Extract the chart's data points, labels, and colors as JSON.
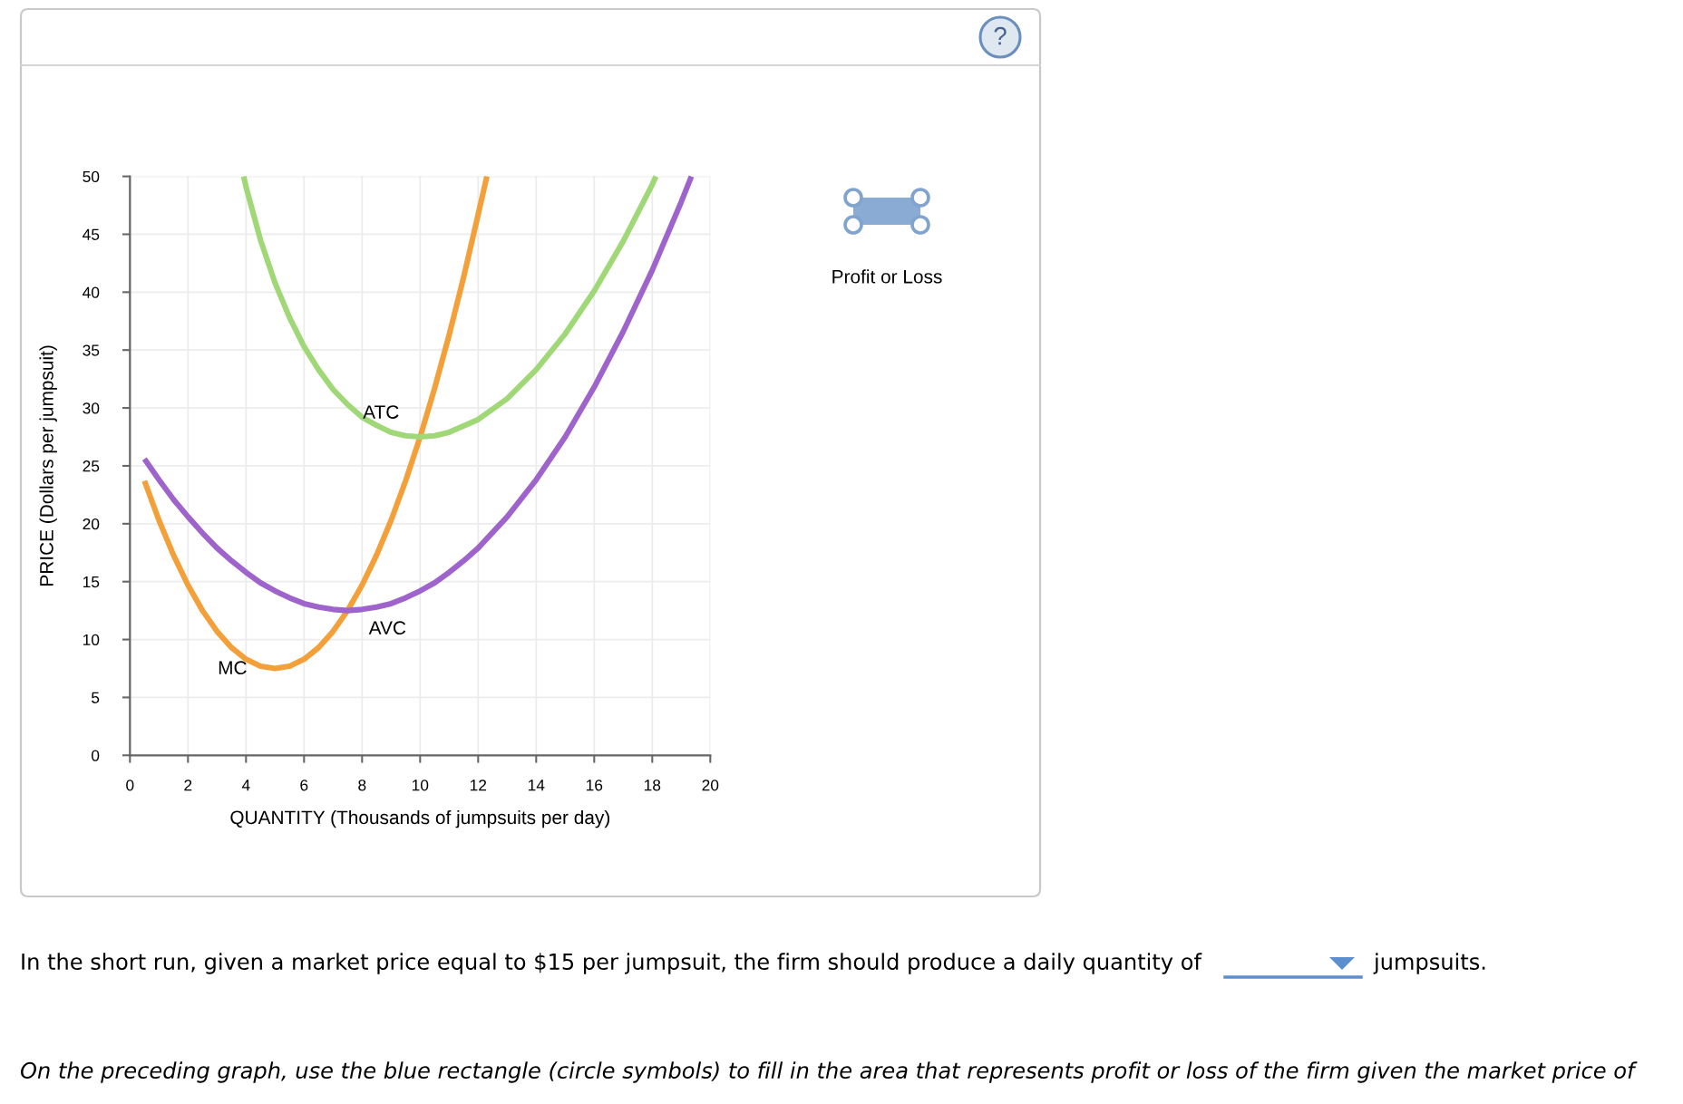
{
  "chart_data": {
    "type": "line",
    "xlabel": "QUANTITY (Thousands of jumpsuits per day)",
    "ylabel": "PRICE (Dollars per jumpsuit)",
    "xlim": [
      0,
      20
    ],
    "ylim": [
      0,
      50
    ],
    "xticks": [
      0,
      2,
      4,
      6,
      8,
      10,
      12,
      14,
      16,
      18,
      20
    ],
    "yticks": [
      0,
      5,
      10,
      15,
      20,
      25,
      30,
      35,
      40,
      45,
      50
    ],
    "grid": true,
    "line_style": "solid",
    "series": [
      {
        "name": "MC",
        "color": "#f3a03a",
        "x": [
          0.5,
          1,
          1.5,
          2,
          2.5,
          3,
          3.5,
          4,
          4.5,
          5,
          5.5,
          6,
          6.5,
          7,
          7.5,
          8,
          8.5,
          9,
          9.5,
          10,
          10.5,
          11,
          11.5,
          12,
          12.3
        ],
        "values": [
          23.7,
          20.3,
          17.3,
          14.7,
          12.5,
          10.7,
          9.3,
          8.3,
          7.7,
          7.5,
          7.7,
          8.3,
          9.3,
          10.7,
          12.5,
          14.7,
          17.3,
          20.3,
          23.7,
          27.5,
          31.7,
          36.3,
          41.3,
          46.7,
          50
        ]
      },
      {
        "name": "AVC",
        "color": "#9e64cc",
        "x": [
          0.5,
          1,
          1.5,
          2,
          2.5,
          3,
          3.5,
          4,
          4.5,
          5,
          5.5,
          6,
          6.5,
          7,
          7.5,
          8,
          8.5,
          9,
          9.5,
          10,
          10.5,
          11,
          11.5,
          12,
          13,
          14,
          15,
          16,
          17,
          18,
          19,
          19.35
        ],
        "values": [
          25.6,
          23.8,
          22.1,
          20.6,
          19.2,
          17.9,
          16.8,
          15.8,
          14.9,
          14.2,
          13.6,
          13.1,
          12.8,
          12.6,
          12.5,
          12.6,
          12.8,
          13.1,
          13.6,
          14.2,
          14.9,
          15.8,
          16.8,
          17.9,
          20.6,
          23.8,
          27.5,
          31.8,
          36.6,
          41.9,
          47.8,
          50
        ]
      },
      {
        "name": "ATC",
        "color": "#a0d878",
        "x": [
          3.92,
          4,
          4.5,
          5,
          5.5,
          6,
          6.5,
          7,
          7.5,
          8,
          8.5,
          9,
          9.5,
          10,
          10.5,
          11,
          12,
          13,
          14,
          15,
          16,
          17,
          18,
          18.13
        ],
        "values": [
          50,
          49.1,
          44.5,
          40.8,
          37.8,
          35.3,
          33.3,
          31.6,
          30.3,
          29.2,
          28.5,
          27.9,
          27.6,
          27.5,
          27.6,
          27.9,
          29.0,
          30.8,
          33.3,
          36.4,
          40.1,
          44.4,
          49.3,
          50
        ]
      }
    ],
    "annotations": [
      "?",
      "Profit or Loss",
      "In the short run, given a market price equal to $15 per jumpsuit, the firm should produce a daily quantity of",
      "jumpsuits.",
      "On the preceding graph, use the blue rectangle (circle symbols) to fill in the area that represents profit or loss of the firm given the market price of"
    ]
  }
}
